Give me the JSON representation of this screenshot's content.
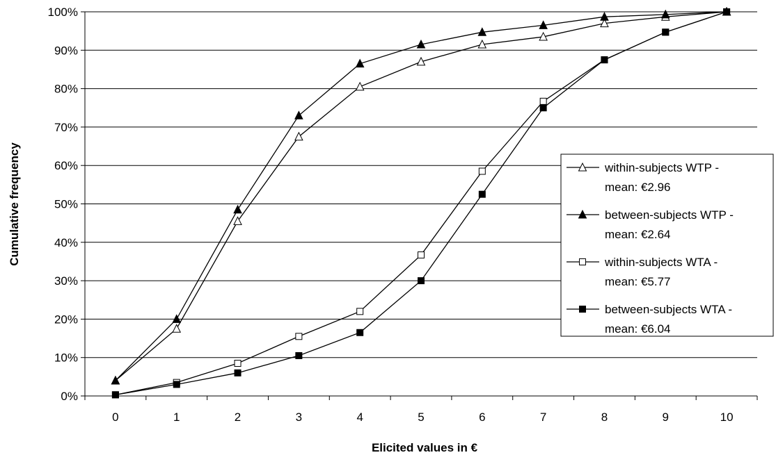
{
  "chart_data": {
    "type": "line",
    "title": "",
    "xlabel": "Elicited values in €",
    "ylabel": "Cumulative frequency",
    "x": [
      0,
      1,
      2,
      3,
      4,
      5,
      6,
      7,
      8,
      9,
      10
    ],
    "x_tick_labels": [
      "0",
      "1",
      "2",
      "3",
      "4",
      "5",
      "6",
      "7",
      "8",
      "9",
      "10"
    ],
    "y_tick_labels": [
      "0%",
      "10%",
      "20%",
      "30%",
      "40%",
      "50%",
      "60%",
      "70%",
      "80%",
      "90%",
      "100%"
    ],
    "ylim": [
      0,
      100
    ],
    "y_unit": "%",
    "grid": "horizontal",
    "legend_position": "right",
    "series": [
      {
        "name": "within-subjects WTP -",
        "name_line2": "mean: €2.96",
        "marker": "triangle-open",
        "values": [
          4,
          17.5,
          45.5,
          67.5,
          80.5,
          87,
          91.5,
          93.5,
          97,
          98.7,
          100
        ]
      },
      {
        "name": "between-subjects WTP -",
        "name_line2": "mean: €2.64",
        "marker": "triangle-filled",
        "values": [
          4,
          20,
          48.5,
          73,
          86.5,
          91.5,
          94.7,
          96.5,
          98.7,
          99.3,
          100
        ]
      },
      {
        "name": "within-subjects WTA -",
        "name_line2": "mean: €5.77",
        "marker": "square-open",
        "values": [
          0.3,
          3.5,
          8.5,
          15.5,
          22,
          36.7,
          58.5,
          76.7,
          87.5,
          94.7,
          100
        ]
      },
      {
        "name": "between-subjects WTA -",
        "name_line2": "mean: €6.04",
        "marker": "square-filled",
        "values": [
          0.3,
          3,
          6,
          10.5,
          16.5,
          30,
          52.5,
          75,
          87.5,
          94.7,
          100
        ]
      }
    ],
    "colors": {
      "line": "#000000",
      "grid": "#000000",
      "background": "#ffffff"
    }
  }
}
